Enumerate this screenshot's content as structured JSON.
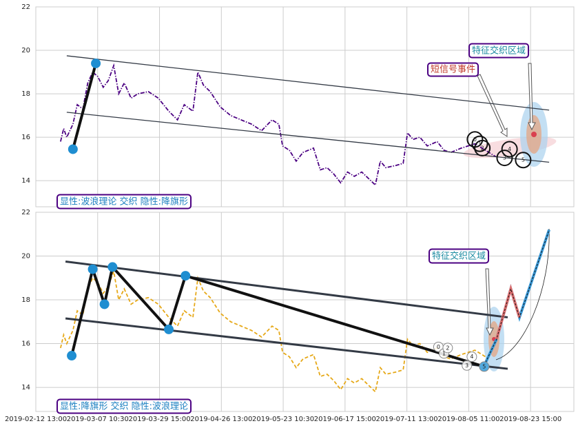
{
  "chart_data": [
    {
      "type": "line",
      "x": [
        4,
        4.5,
        5,
        6,
        6.7,
        7.6,
        8.4,
        9.2,
        10,
        10.9,
        11.7,
        12.6,
        13.4,
        14.3,
        15.4,
        16.5,
        18.2,
        19.8,
        21.5,
        22.9,
        24,
        25.4,
        26.2,
        27.1,
        28.2,
        29.8,
        31.5,
        33.2,
        34.9,
        36.5,
        38.2,
        39.3,
        39.9,
        41,
        42.1,
        43.2,
        44.9,
        46,
        47.1,
        48.2,
        49.3,
        50.4,
        51.5,
        52.7,
        53.8,
        54.9,
        55.7,
        56.6,
        58.2,
        59.4,
        60.1,
        61,
        62.1,
        63.3,
        64.9,
        66,
        67.1,
        68.8,
        71,
        72.7,
        74.4
      ],
      "values": [
        15.8,
        16.4,
        16.0,
        16.6,
        17.5,
        17.3,
        18.5,
        19.0,
        18.8,
        18.3,
        18.6,
        19.3,
        18.0,
        18.5,
        17.8,
        18.0,
        18.1,
        17.8,
        17.2,
        16.8,
        17.5,
        17.2,
        19.0,
        18.4,
        18.1,
        17.4,
        17.0,
        16.8,
        16.6,
        16.3,
        16.8,
        16.6,
        15.6,
        15.4,
        14.9,
        15.3,
        15.5,
        14.5,
        14.6,
        14.3,
        13.9,
        14.4,
        14.2,
        14.4,
        14.1,
        13.8,
        14.9,
        14.6,
        14.7,
        14.8,
        16.2,
        15.9,
        16.0,
        15.6,
        15.8,
        15.4,
        15.3,
        15.5,
        15.7,
        15.4,
        15.1
      ],
      "color": "#4b0082",
      "xlim": [
        0,
        87
      ],
      "ylim": [
        12.8,
        22
      ],
      "yticks": [
        14,
        16,
        18,
        20,
        22
      ],
      "grid": true,
      "channels": [
        {
          "x": [
            5,
            83
          ],
          "values": [
            19.75,
            17.25
          ]
        },
        {
          "x": [
            5,
            83
          ],
          "values": [
            17.15,
            14.85
          ]
        }
      ],
      "wave": {
        "x": [
          6,
          9.7
        ],
        "values": [
          15.45,
          19.4
        ]
      },
      "pattern_points": {
        "labels": [
          "0",
          "1",
          "2",
          "3",
          "4",
          "5"
        ],
        "x": [
          71,
          71.8,
          72.2,
          75.8,
          76.6,
          78.8
        ],
        "values": [
          15.9,
          15.7,
          15.5,
          15.05,
          15.45,
          14.95
        ]
      },
      "annotations": [
        "特征交织区域",
        "短信号事件"
      ],
      "caption": "显性:波浪理论 交织 隐性:降旗形"
    },
    {
      "type": "line",
      "x": [
        4,
        4.5,
        5,
        6,
        6.7,
        7.6,
        8.4,
        9.2,
        10,
        10.9,
        11.7,
        12.6,
        13.4,
        14.3,
        15.4,
        16.5,
        18.2,
        19.8,
        21.5,
        22.9,
        24,
        25.4,
        26.2,
        27.1,
        28.2,
        29.8,
        31.5,
        33.2,
        34.9,
        36.5,
        38.2,
        39.3,
        39.9,
        41,
        42.1,
        43.2,
        44.9,
        46,
        47.1,
        48.2,
        49.3,
        50.4,
        51.5,
        52.7,
        53.8,
        54.9,
        55.7,
        56.6,
        58.2,
        59.4,
        60.1,
        61,
        62.1,
        63.3,
        64.9,
        66,
        67.1,
        68.8,
        71,
        72.7
      ],
      "values": [
        15.8,
        16.4,
        16.0,
        16.6,
        17.5,
        17.3,
        18.5,
        19.0,
        18.8,
        18.3,
        18.6,
        19.3,
        18.0,
        18.5,
        17.8,
        18.0,
        18.1,
        17.8,
        17.2,
        16.8,
        17.5,
        17.2,
        19.0,
        18.4,
        18.1,
        17.4,
        17.0,
        16.8,
        16.6,
        16.3,
        16.8,
        16.6,
        15.6,
        15.4,
        14.9,
        15.3,
        15.5,
        14.5,
        14.6,
        14.3,
        13.9,
        14.4,
        14.2,
        14.4,
        14.1,
        13.8,
        14.9,
        14.6,
        14.7,
        14.8,
        16.2,
        15.9,
        16.0,
        15.6,
        15.8,
        15.4,
        15.3,
        15.5,
        15.7,
        15.4
      ],
      "color": "#e6a817",
      "xlim": [
        0,
        87
      ],
      "ylim": [
        12.9,
        22
      ],
      "yticks": [
        14,
        16,
        18,
        20,
        22
      ],
      "grid": true,
      "xticks": [
        {
          "value": 0,
          "label": "2019-02-12 13:00"
        },
        {
          "value": 10,
          "label": "2019-03-07 10:30"
        },
        {
          "value": 20,
          "label": "2019-03-29 15:00"
        },
        {
          "value": 30,
          "label": "2019-04-26 13:00"
        },
        {
          "value": 40,
          "label": "2019-05-23 10:30"
        },
        {
          "value": 50,
          "label": "2019-06-17 15:00"
        },
        {
          "value": 60,
          "label": "2019-07-11 13:00"
        },
        {
          "value": 70,
          "label": "2019-08-05 11:00"
        },
        {
          "value": 80,
          "label": "2019-08-23 15:00"
        }
      ],
      "channels": [
        {
          "x": [
            4.8,
            76.3
          ],
          "values": [
            19.75,
            17.2
          ]
        },
        {
          "x": [
            4.8,
            76.3
          ],
          "values": [
            17.15,
            14.85
          ]
        }
      ],
      "wave": {
        "x": [
          5.8,
          9.2,
          11.1,
          12.4,
          21.5,
          24.2,
          72.5
        ],
        "values": [
          15.45,
          19.4,
          17.8,
          19.5,
          16.65,
          19.1,
          14.95
        ]
      },
      "pattern_points": {
        "labels": [
          "0",
          "1",
          "2",
          "3",
          "4",
          "5"
        ],
        "x": [
          65.1,
          66,
          66.6,
          69.7,
          70.5,
          72.5
        ],
        "values": [
          15.85,
          15.55,
          15.8,
          15.0,
          15.4,
          14.95
        ]
      },
      "projection": {
        "x": [
          72.5,
          74.5,
          76.8,
          78.2,
          83
        ],
        "values": [
          15.0,
          16.2,
          18.5,
          17.2,
          21.2
        ]
      },
      "annotations": [
        "特征交织区域"
      ],
      "caption": "显性:降旗形 交织 隐性:波浪理论"
    }
  ]
}
